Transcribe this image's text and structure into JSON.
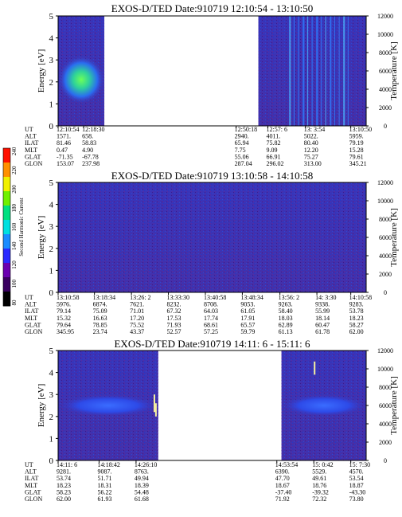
{
  "chart_data": [
    {
      "type": "heatmap",
      "title": "EXOS-D/TED   Date:910719  12:10:54 - 13:10:50",
      "ylabel": "Energy [eV]",
      "ylabel_right": "Temperature [K]",
      "ylim": [
        0,
        5
      ],
      "ylim_right": [
        0,
        12000
      ],
      "y_ticks": [
        "0",
        "1",
        "2",
        "3",
        "4",
        "5"
      ],
      "y_ticks_right": [
        "0",
        "2000",
        "4000",
        "6000",
        "8000",
        "10000",
        "12000"
      ],
      "orbit_labels": [
        "UT",
        "ALT",
        "ILAT",
        "MLT",
        "GLAT",
        "GLON"
      ],
      "orbit_columns": [
        {
          "pos": 0.0,
          "values": [
            "12:10:54",
            "1571.",
            "81.46",
            "0.47",
            "-71.35",
            "153.07"
          ]
        },
        {
          "pos": 0.083,
          "values": [
            "12:18:30",
            "658.",
            "58.83",
            "4.90",
            "-67.78",
            "237.98"
          ]
        },
        {
          "pos": 0.578,
          "values": [
            "12:50:18",
            "2940.",
            "65.94",
            "7.75",
            "55.06",
            "287.04"
          ]
        },
        {
          "pos": 0.681,
          "values": [
            "12:57: 6",
            "4011.",
            "75.82",
            "9.09",
            "66.91",
            "296.02"
          ]
        },
        {
          "pos": 0.803,
          "values": [
            "13: 3:54",
            "5022.",
            "80.40",
            "12.20",
            "75.27",
            "313.00"
          ]
        },
        {
          "pos": 0.95,
          "values": [
            "13:10:50",
            "5959.",
            "79.19",
            "15.28",
            "79.61",
            "345.21"
          ]
        }
      ],
      "data_segments": [
        [
          0.0,
          0.15
        ],
        [
          0.65,
          1.0
        ]
      ],
      "features": [
        {
          "x_range": [
            0.0,
            0.15
          ],
          "energy_range": [
            1.0,
            3.2
          ],
          "level": "enhanced",
          "color": "#3fe06a"
        },
        {
          "x_range": [
            0.75,
            0.94
          ],
          "energy_range": [
            0,
            5
          ],
          "level": "vertical streaks",
          "color": "#2f7fff"
        }
      ]
    },
    {
      "type": "heatmap",
      "title": "EXOS-D/TED   Date:910719  13:10:58 - 14:10:58",
      "ylabel": "Energy [eV]",
      "ylabel_right": "Temperature [K]",
      "ylim": [
        0,
        5
      ],
      "ylim_right": [
        0,
        12000
      ],
      "y_ticks": [
        "0",
        "1",
        "2",
        "3",
        "4",
        "5"
      ],
      "y_ticks_right": [
        "0",
        "2000",
        "4000",
        "6000",
        "8000",
        "10000",
        "12000"
      ],
      "orbit_labels": [
        "UT",
        "ALT",
        "ILAT",
        "MLT",
        "GLAT",
        "GLON"
      ],
      "orbit_columns": [
        {
          "pos": 0.0,
          "values": [
            "13:10:58",
            "5976.",
            "79.14",
            "15.32",
            "79.64",
            "345.95"
          ]
        },
        {
          "pos": 0.118,
          "values": [
            "13:18:34",
            "6874.",
            "75.09",
            "16.63",
            "78.85",
            "23.74"
          ]
        },
        {
          "pos": 0.238,
          "values": [
            "13:26: 2",
            "7621.",
            "71.01",
            "17.20",
            "75.52",
            "43.37"
          ]
        },
        {
          "pos": 0.358,
          "values": [
            "13:33:30",
            "8232.",
            "67.32",
            "17.53",
            "71.93",
            "52.57"
          ]
        },
        {
          "pos": 0.478,
          "values": [
            "13:40:58",
            "8708.",
            "64.03",
            "17.74",
            "68.61",
            "57.25"
          ]
        },
        {
          "pos": 0.598,
          "values": [
            "13:48:34",
            "9053.",
            "61.05",
            "17.91",
            "65.57",
            "59.79"
          ]
        },
        {
          "pos": 0.72,
          "values": [
            "13:56: 2",
            "9263.",
            "58.40",
            "18.03",
            "62.89",
            "61.13"
          ]
        },
        {
          "pos": 0.84,
          "values": [
            "14: 3:30",
            "9338.",
            "55.99",
            "18.14",
            "60.47",
            "61.78"
          ]
        },
        {
          "pos": 0.95,
          "values": [
            "14:10:58",
            "9283.",
            "53.78",
            "18.23",
            "58.27",
            "62.00"
          ]
        }
      ],
      "data_segments": [
        [
          0.0,
          1.0
        ]
      ],
      "features": []
    },
    {
      "type": "heatmap",
      "title": "EXOS-D/TED   Date:910719  14:11: 6 - 15:11: 6",
      "ylabel": "Energy [eV]",
      "ylabel_right": "Temperature [K]",
      "ylim": [
        0,
        5
      ],
      "ylim_right": [
        0,
        12000
      ],
      "y_ticks": [
        "0",
        "1",
        "2",
        "3",
        "4",
        "5"
      ],
      "y_ticks_right": [
        "0",
        "2000",
        "4000",
        "6000",
        "8000",
        "10000",
        "12000"
      ],
      "orbit_labels": [
        "UT",
        "ALT",
        "ILAT",
        "MLT",
        "GLAT",
        "GLON"
      ],
      "orbit_columns": [
        {
          "pos": 0.0,
          "values": [
            "14:11: 6",
            "9281.",
            "53.74",
            "18.23",
            "58.23",
            "62.00"
          ]
        },
        {
          "pos": 0.133,
          "values": [
            "14:18:42",
            "9087.",
            "51.71",
            "18.31",
            "56.22",
            "61.93"
          ]
        },
        {
          "pos": 0.253,
          "values": [
            "14:26:10",
            "8763.",
            "49.94",
            "18.39",
            "54.48",
            "61.68"
          ]
        },
        {
          "pos": 0.71,
          "values": [
            "14:53:54",
            "6390.",
            "47.70",
            "18.67",
            "-37.40",
            "71.92"
          ]
        },
        {
          "pos": 0.83,
          "values": [
            "15: 0:42",
            "5529.",
            "49.61",
            "18.76",
            "-39.32",
            "72.32"
          ]
        },
        {
          "pos": 0.95,
          "values": [
            "15: 7:30",
            "4570.",
            "53.54",
            "18.87",
            "-43.30",
            "73.80"
          ]
        }
      ],
      "data_segments": [
        [
          0.0,
          0.325
        ],
        [
          0.725,
          1.0
        ]
      ],
      "features": [
        {
          "x_range": [
            0.0,
            0.325
          ],
          "energy_range": [
            2.0,
            3.0
          ],
          "level": "enhanced",
          "color": "#3a5cff"
        },
        {
          "x_range": [
            0.725,
            1.0
          ],
          "energy_range": [
            2.0,
            3.0
          ],
          "level": "enhanced",
          "color": "#3a5cff"
        }
      ]
    }
  ],
  "colorbar": {
    "label": "Second Harmonic Current",
    "ticks": [
      "80",
      "100",
      "120",
      "140",
      "160",
      "180",
      "200",
      "220",
      "240"
    ],
    "colors": [
      "#000000",
      "#3a0060",
      "#6a00b0",
      "#2a2aff",
      "#1a8cff",
      "#00e0e0",
      "#00e080",
      "#70f000",
      "#f0f000",
      "#ff9000",
      "#ff1000"
    ]
  }
}
